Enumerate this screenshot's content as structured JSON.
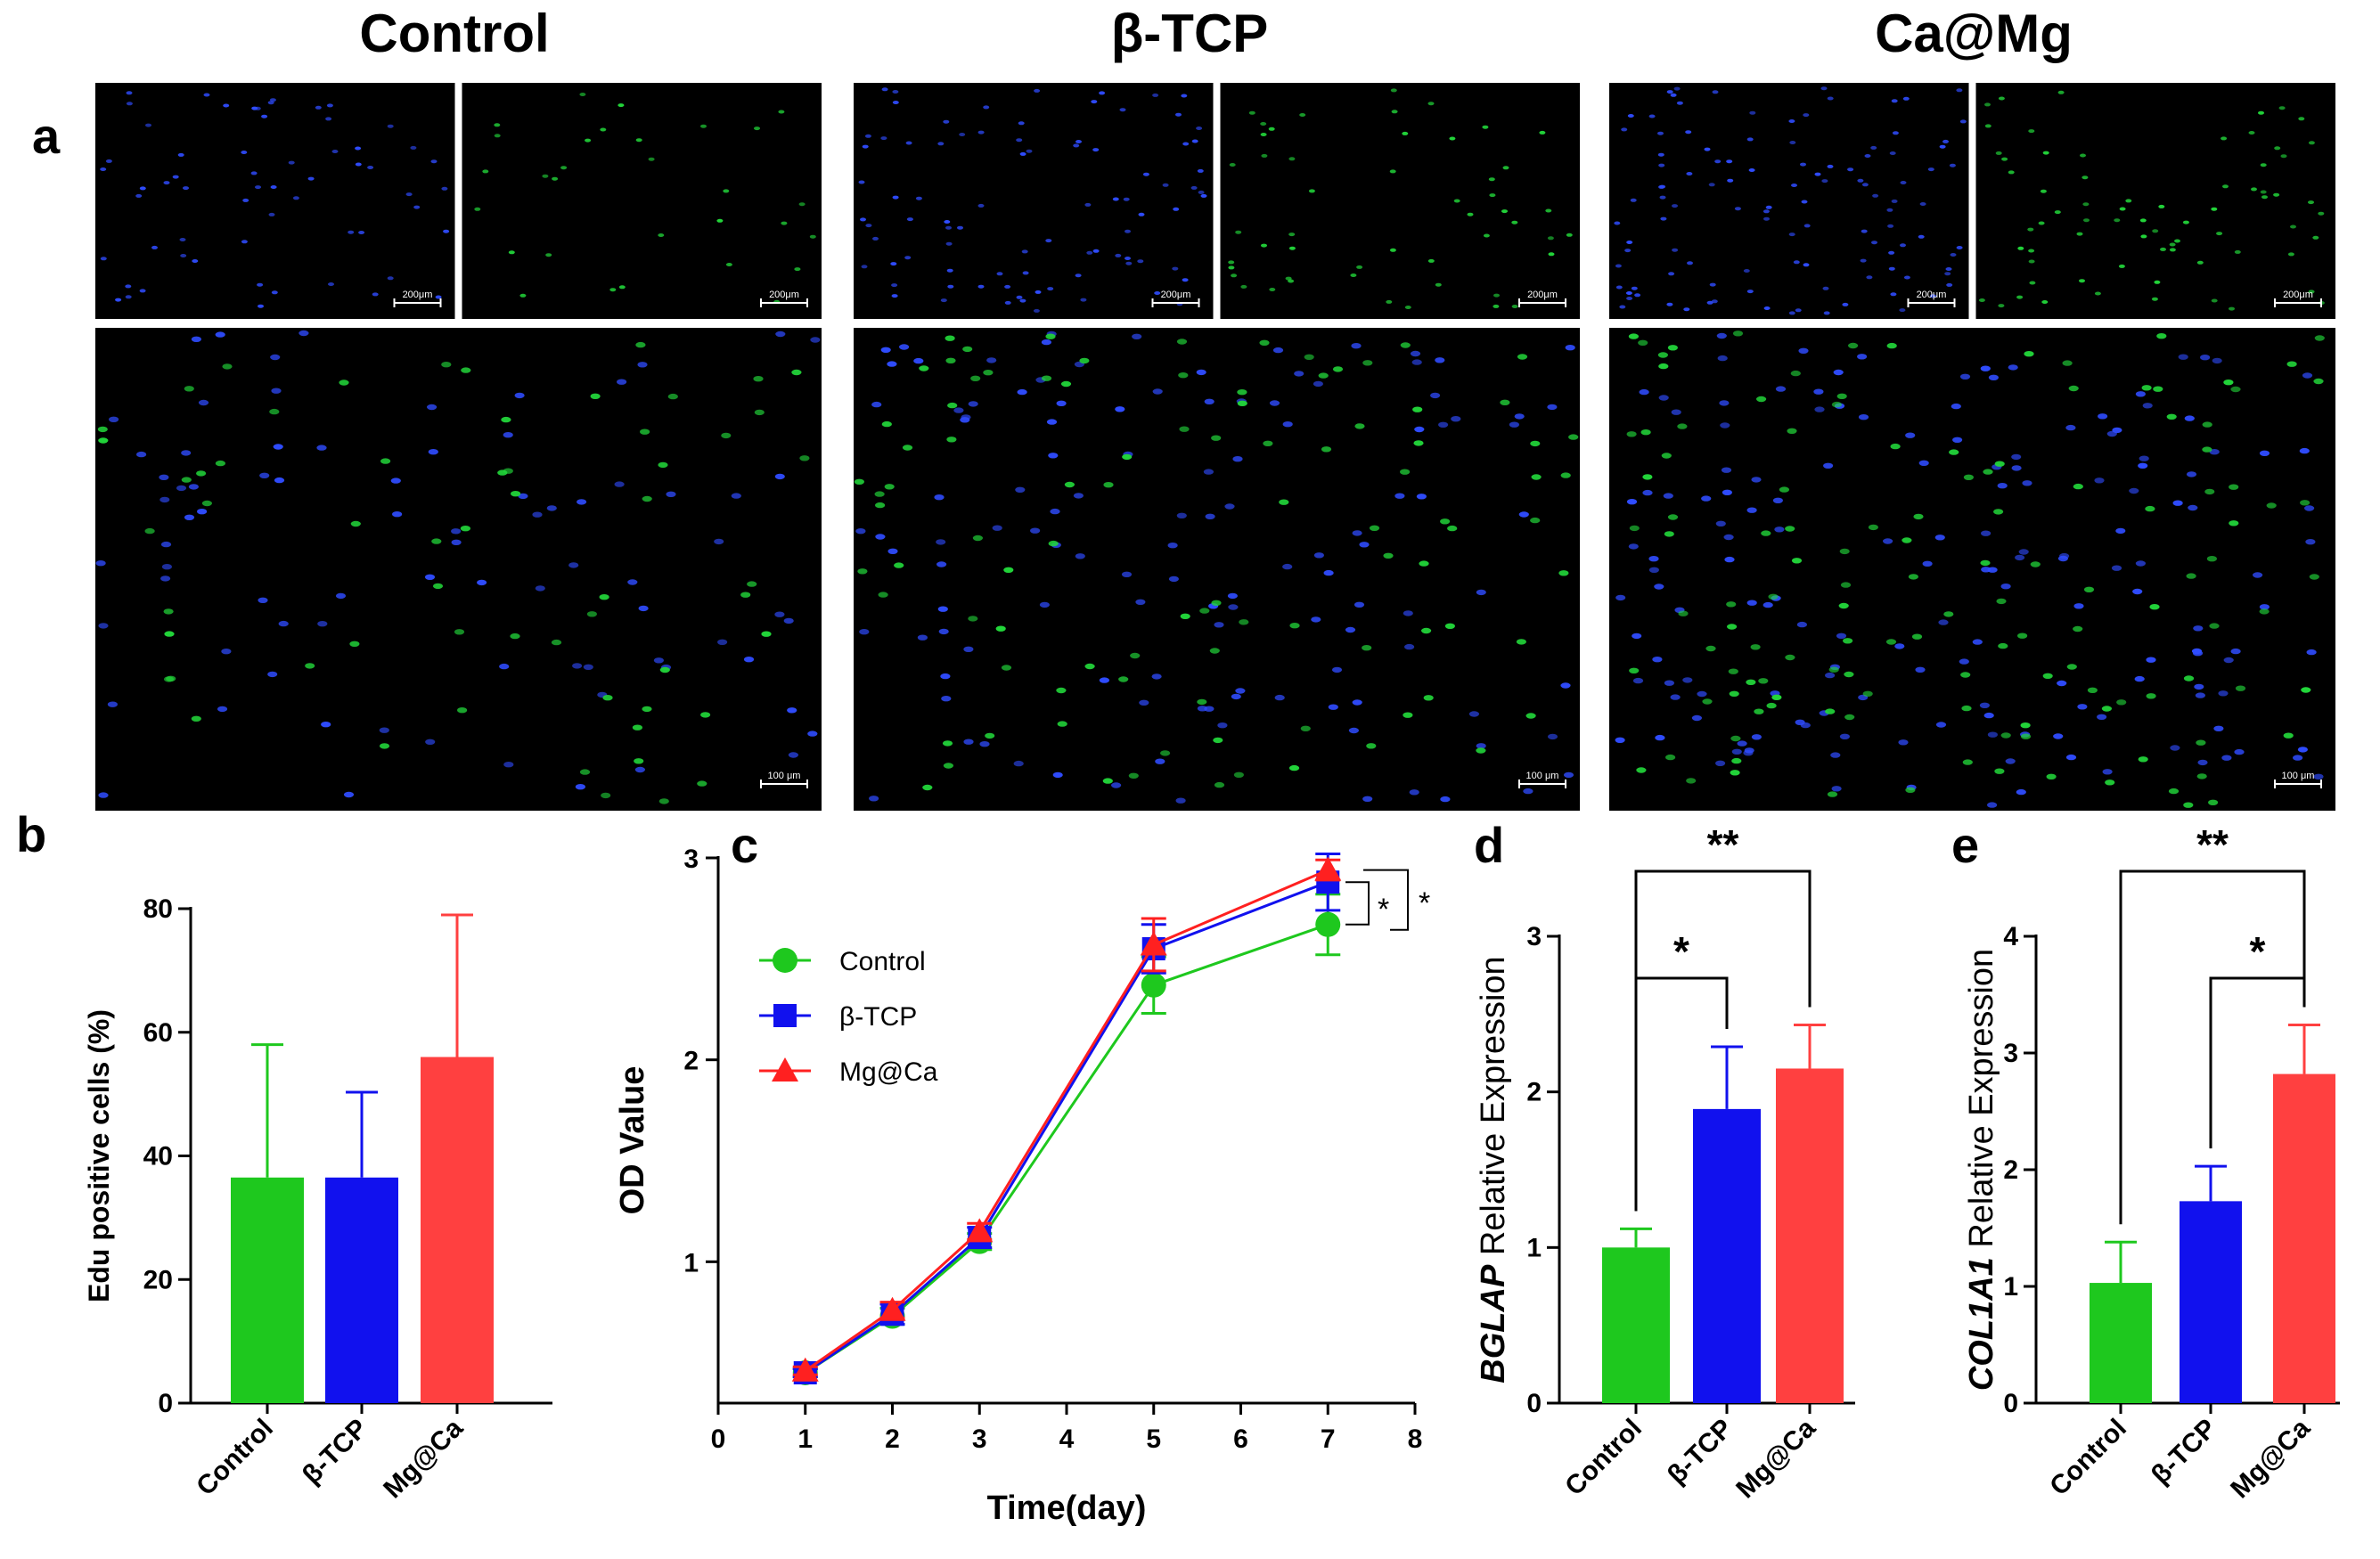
{
  "panel_a": {
    "letter": "a",
    "groups": [
      {
        "title": "Control",
        "scale_small": "200μm",
        "scale_large": "100 μm"
      },
      {
        "title": "β-TCP",
        "scale_small": "200μm",
        "scale_large": "100 μm"
      },
      {
        "title": "Ca@Mg",
        "scale_small": "200μm",
        "scale_large": "100 μm"
      }
    ],
    "colors": {
      "dapi": "#2f4cff",
      "edu": "#22d63a",
      "background": "#000000"
    }
  },
  "chart_data": [
    {
      "id": "b",
      "letter": "b",
      "type": "bar",
      "categories": [
        "Control",
        "β-TCP",
        "Mg@Ca"
      ],
      "values": [
        36.5,
        36.5,
        56
      ],
      "errors": [
        21.5,
        13.8,
        23
      ],
      "colors": [
        "#1ec81e",
        "#1111ee",
        "#ff4040"
      ],
      "ylabel": "Edu positive cells (%)",
      "yticks": [
        "0",
        "20",
        "40",
        "60",
        "80"
      ],
      "ylim": [
        0,
        80
      ]
    },
    {
      "id": "c",
      "letter": "c",
      "type": "line",
      "xlabel": "Time(day)",
      "ylabel": "OD Value",
      "xticks": [
        "0",
        "1",
        "2",
        "3",
        "4",
        "5",
        "6",
        "7",
        "8"
      ],
      "yticks": [
        "1",
        "2",
        "3"
      ],
      "xlim": [
        0,
        8
      ],
      "ylim": [
        0.3,
        3
      ],
      "x": [
        1,
        2,
        3,
        5,
        7
      ],
      "series": [
        {
          "name": "Control",
          "color": "#1ec81e",
          "marker": "circle",
          "values": [
            0.45,
            0.73,
            1.1,
            2.37,
            2.67
          ],
          "errors": [
            0.02,
            0.04,
            0.04,
            0.14,
            0.15
          ]
        },
        {
          "name": "β-TCP",
          "color": "#1111ee",
          "marker": "square",
          "values": [
            0.45,
            0.74,
            1.12,
            2.55,
            2.88
          ],
          "errors": [
            0.02,
            0.05,
            0.05,
            0.12,
            0.14
          ]
        },
        {
          "name": "Mg@Ca",
          "color": "#ff2020",
          "marker": "triangle",
          "values": [
            0.46,
            0.76,
            1.15,
            2.57,
            2.94
          ],
          "errors": [
            0.02,
            0.04,
            0.04,
            0.13,
            0.05
          ]
        }
      ],
      "significance": [
        "*",
        "*"
      ]
    },
    {
      "id": "d",
      "letter": "d",
      "type": "bar",
      "categories": [
        "Control",
        "β-TCP",
        "Mg@Ca"
      ],
      "values": [
        1.0,
        1.89,
        2.15
      ],
      "errors": [
        0.12,
        0.4,
        0.28
      ],
      "colors": [
        "#1ec81e",
        "#1111ee",
        "#ff4040"
      ],
      "ylabel_italic": "BGLAP",
      "ylabel_rest": " Relative Expression",
      "yticks": [
        "0",
        "1",
        "2",
        "3"
      ],
      "ylim": [
        0,
        3
      ],
      "significance": [
        {
          "from": 0,
          "to": 1,
          "label": "*"
        },
        {
          "from": 0,
          "to": 2,
          "label": "**"
        }
      ]
    },
    {
      "id": "e",
      "letter": "e",
      "type": "bar",
      "categories": [
        "Control",
        "β-TCP",
        "Mg@Ca"
      ],
      "values": [
        1.03,
        1.73,
        2.82
      ],
      "errors": [
        0.35,
        0.3,
        0.42
      ],
      "colors": [
        "#1ec81e",
        "#1111ee",
        "#ff4040"
      ],
      "ylabel_italic": "COL1A1",
      "ylabel_rest": "  Relative Expression",
      "yticks": [
        "0",
        "1",
        "2",
        "3",
        "4"
      ],
      "ylim": [
        0,
        4
      ],
      "significance": [
        {
          "from": 1,
          "to": 2,
          "label": "*"
        },
        {
          "from": 0,
          "to": 2,
          "label": "**"
        }
      ]
    }
  ]
}
